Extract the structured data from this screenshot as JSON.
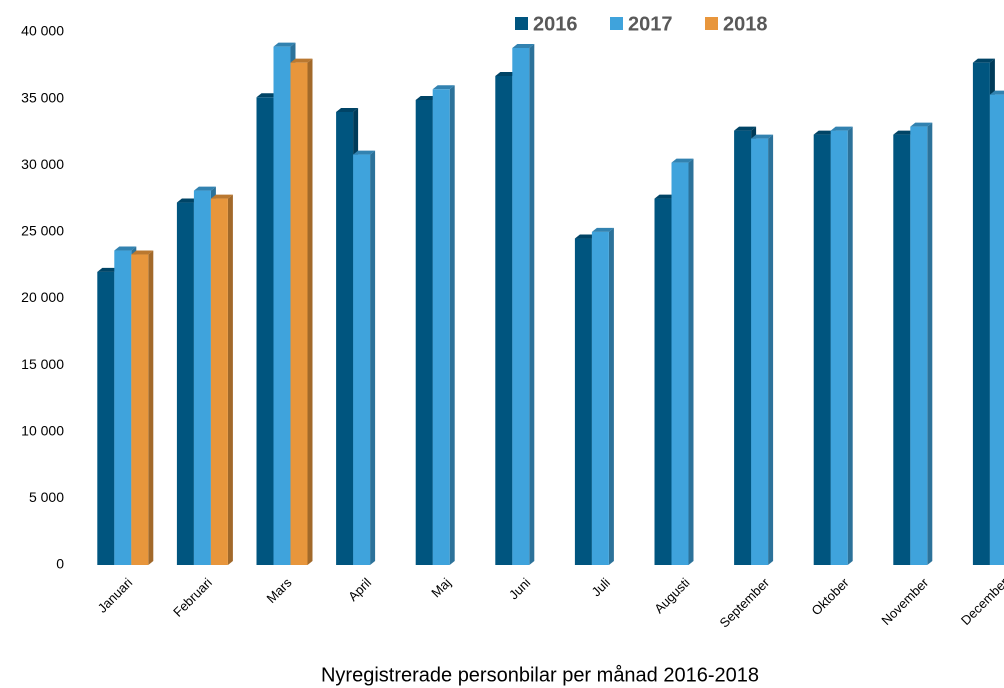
{
  "chart_data": {
    "type": "bar",
    "title": "Nyregistrerade personbilar per månad 2016-2018",
    "categories": [
      "Januari",
      "Februari",
      "Mars",
      "April",
      "Maj",
      "Juni",
      "Juli",
      "Augusti",
      "September",
      "Oktober",
      "November",
      "December"
    ],
    "series": [
      {
        "name": "2016",
        "color": "#00557f",
        "values": [
          22000,
          27200,
          35100,
          34000,
          34900,
          36700,
          24500,
          27500,
          32600,
          32300,
          32300,
          37700
        ]
      },
      {
        "name": "2017",
        "color": "#3fa3dc",
        "values": [
          23600,
          28100,
          38900,
          30800,
          35700,
          38800,
          25000,
          30200,
          32000,
          32600,
          32900,
          35300
        ]
      },
      {
        "name": "2018",
        "color": "#e8963c",
        "values": [
          23300,
          27500,
          37700,
          null,
          null,
          null,
          null,
          null,
          null,
          null,
          null,
          null
        ]
      }
    ],
    "ylim": [
      0,
      40000
    ],
    "yticks": [
      0,
      {
        "value": 5000,
        "label": "5 000"
      },
      {
        "value": 10000,
        "label": "10 000"
      },
      {
        "value": 15000,
        "label": "15 000"
      },
      {
        "value": 20000,
        "label": "20 000"
      },
      {
        "value": 25000,
        "label": "25 000"
      },
      {
        "value": 30000,
        "label": "30 000"
      },
      {
        "value": 35000,
        "label": "35 000"
      },
      {
        "value": 40000,
        "label": "40 000"
      }
    ]
  }
}
